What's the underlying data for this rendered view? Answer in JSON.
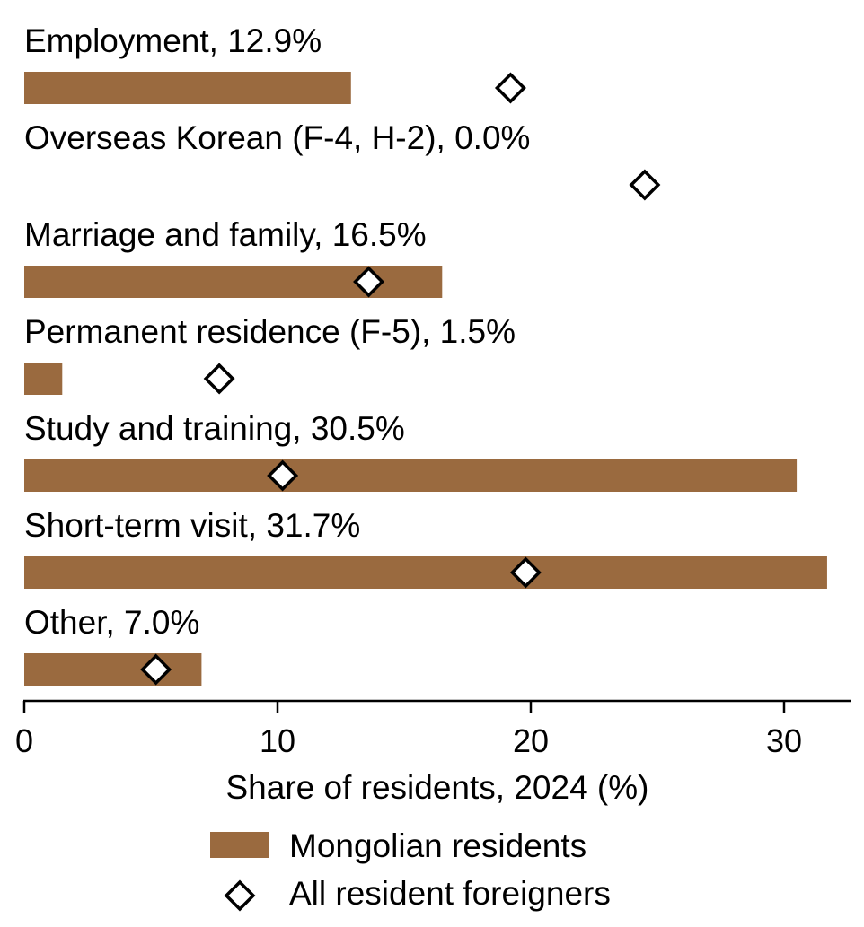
{
  "chart_data": {
    "type": "bar",
    "orientation": "horizontal",
    "categories": [
      "Employment",
      "Overseas Korean (F-4, H-2)",
      "Marriage and family",
      "Permanent residence (F-5)",
      "Study and training",
      "Short-term visit",
      "Other"
    ],
    "category_labels": [
      "Employment, 12.9%",
      "Overseas Korean (F-4, H-2), 0.0%",
      "Marriage and family, 16.5%",
      "Permanent residence (F-5), 1.5%",
      "Study and training, 30.5%",
      "Short-term visit, 31.7%",
      "Other, 7.0%"
    ],
    "series": [
      {
        "name": "Mongolian residents",
        "type": "bar",
        "color": "#9a6a3f",
        "values": [
          12.9,
          0.0,
          16.5,
          1.5,
          30.5,
          31.7,
          7.0
        ]
      },
      {
        "name": "All resident foreigners",
        "type": "marker",
        "marker": "diamond-outline-icon",
        "values": [
          19.2,
          24.5,
          13.6,
          7.7,
          10.2,
          19.8,
          5.2
        ]
      }
    ],
    "xlabel": "Share of residents, 2024 (%)",
    "xlim": [
      0,
      32.7
    ],
    "xticks": [
      0,
      10,
      20,
      30
    ],
    "grid": false,
    "legend_position": "bottom-center"
  }
}
